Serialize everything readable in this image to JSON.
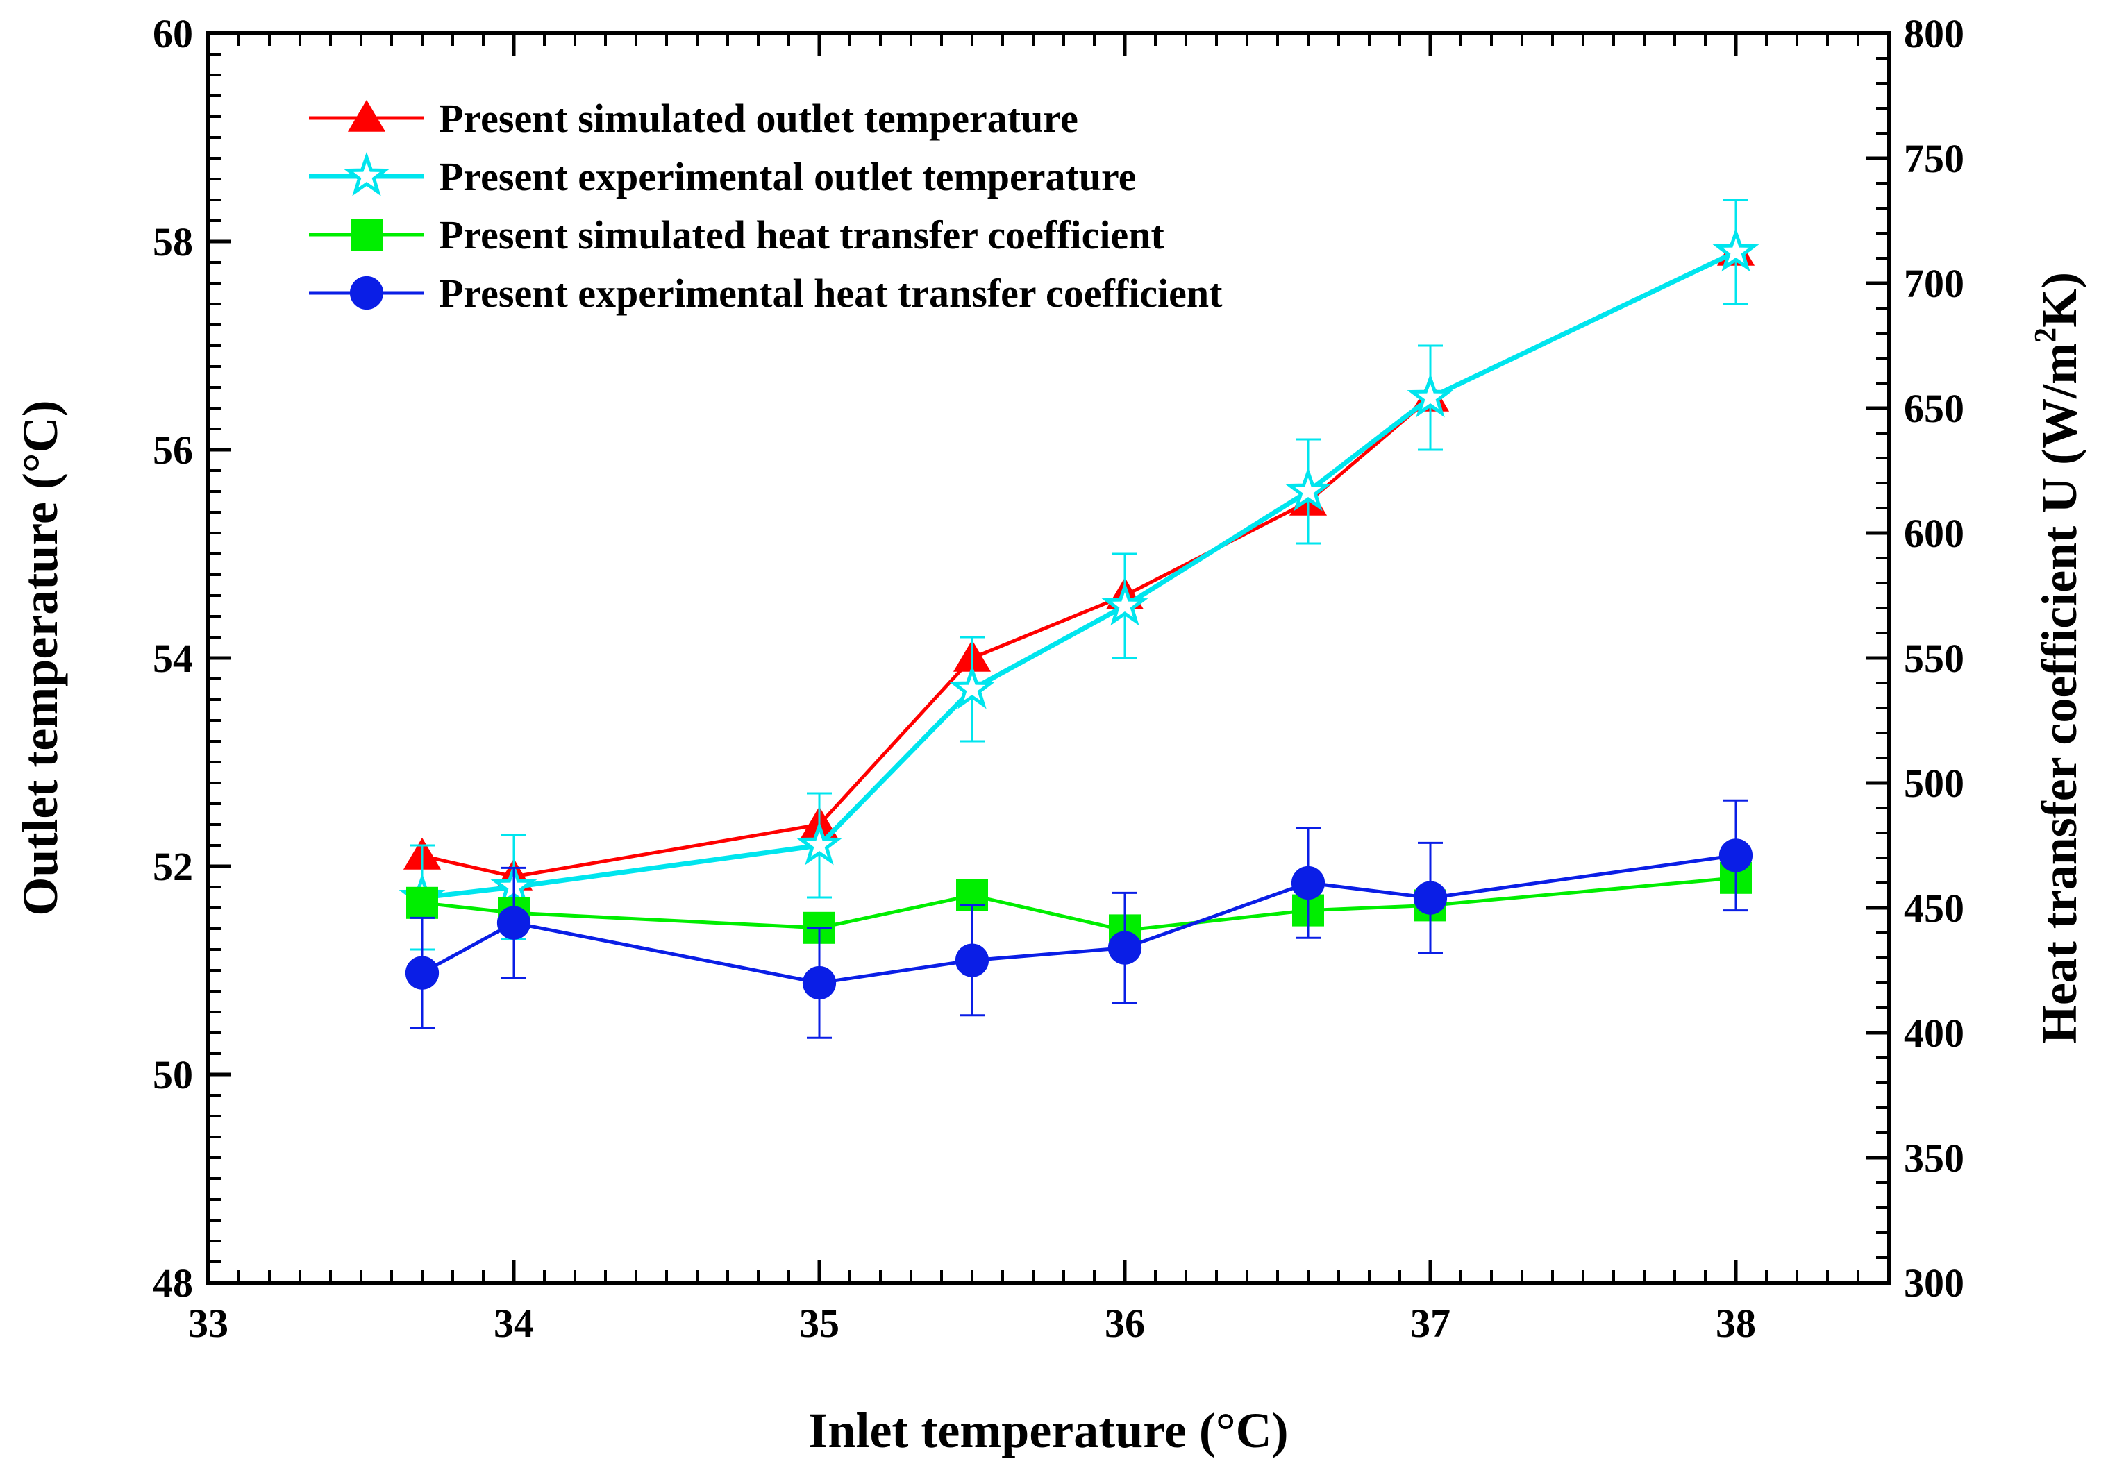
{
  "chart_data": {
    "type": "line",
    "xlabel": "Inlet temperature (°C)",
    "ylabel_left": "Outlet temperature (°C)",
    "ylabel_right_prefix": "Heat transfer coefficient U (W/m",
    "ylabel_right_sup": "2",
    "ylabel_right_suffix": "K)",
    "xlim": [
      33,
      38.5
    ],
    "ylim_left": [
      48,
      60
    ],
    "ylim_right": [
      300,
      800
    ],
    "x_ticks": [
      "33",
      "34",
      "35",
      "36",
      "37",
      "38"
    ],
    "y_left_ticks": [
      "48",
      "50",
      "52",
      "54",
      "56",
      "58",
      "60"
    ],
    "y_right_ticks": [
      "300",
      "350",
      "400",
      "450",
      "500",
      "550",
      "600",
      "650",
      "700",
      "750",
      "800"
    ],
    "legend_position": "top-left",
    "series": [
      {
        "name": "Present simulated outlet temperature",
        "axis": "left",
        "color": "#ff0000",
        "marker": "triangle",
        "x": [
          33.7,
          34,
          35,
          35.5,
          36,
          36.6,
          37,
          38
        ],
        "y": [
          52.1,
          51.9,
          52.4,
          54.0,
          54.6,
          55.5,
          56.5,
          57.9
        ],
        "error": null
      },
      {
        "name": "Present experimental outlet temperature",
        "axis": "left",
        "color": "#00e5ee",
        "marker": "star",
        "x": [
          33.7,
          34,
          35,
          35.5,
          36,
          36.6,
          37,
          38
        ],
        "y": [
          51.7,
          51.8,
          52.2,
          53.7,
          54.5,
          55.6,
          56.5,
          57.9
        ],
        "error": [
          0.5,
          0.5,
          0.5,
          0.5,
          0.5,
          0.5,
          0.5,
          0.5
        ]
      },
      {
        "name": "Present simulated heat transfer coefficient",
        "axis": "right",
        "color": "#00ee00",
        "marker": "square",
        "x": [
          33.7,
          34,
          35,
          35.5,
          36,
          36.6,
          37,
          38
        ],
        "y": [
          452,
          448,
          442,
          455,
          441,
          449,
          451,
          462
        ],
        "error": null
      },
      {
        "name": "Present experimental heat transfer coefficient",
        "axis": "right",
        "color": "#0a1ee6",
        "marker": "circle",
        "x": [
          33.7,
          34,
          35,
          35.5,
          36,
          36.6,
          37,
          38
        ],
        "y": [
          424,
          444,
          420,
          429,
          434,
          460,
          454,
          471
        ],
        "error": [
          22,
          22,
          22,
          22,
          22,
          22,
          22,
          22
        ]
      }
    ]
  }
}
